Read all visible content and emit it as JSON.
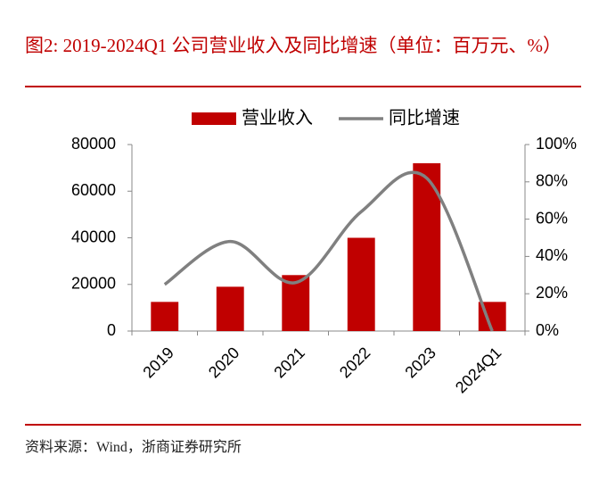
{
  "chart_data": {
    "type": "bar-line",
    "title": "图2:  2019-2024Q1 公司营业收入及同比增速（单位：百万元、%）",
    "source": "资料来源：Wind，浙商证券研究所",
    "categories": [
      "2019",
      "2020",
      "2021",
      "2022",
      "2023",
      "2024Q1"
    ],
    "series": [
      {
        "name": "营业收入",
        "type": "bar",
        "color": "#c00000",
        "values": [
          12500,
          19000,
          24000,
          40000,
          72000,
          12500
        ]
      },
      {
        "name": "同比增速",
        "type": "line",
        "axis": "y2",
        "color": "#808080",
        "values": [
          25,
          48,
          26,
          64,
          82,
          0
        ]
      }
    ],
    "ylim": [
      0,
      80000
    ],
    "yticks": [
      0,
      20000,
      40000,
      60000,
      80000
    ],
    "y2lim": [
      0,
      100
    ],
    "y2ticks": [
      {
        "value": 0,
        "label": "0%"
      },
      {
        "value": 20,
        "label": "20%"
      },
      {
        "value": 40,
        "label": "40%"
      },
      {
        "value": 60,
        "label": "60%"
      },
      {
        "value": 80,
        "label": "80%"
      },
      {
        "value": 100,
        "label": "100%"
      }
    ],
    "legend": "top"
  }
}
